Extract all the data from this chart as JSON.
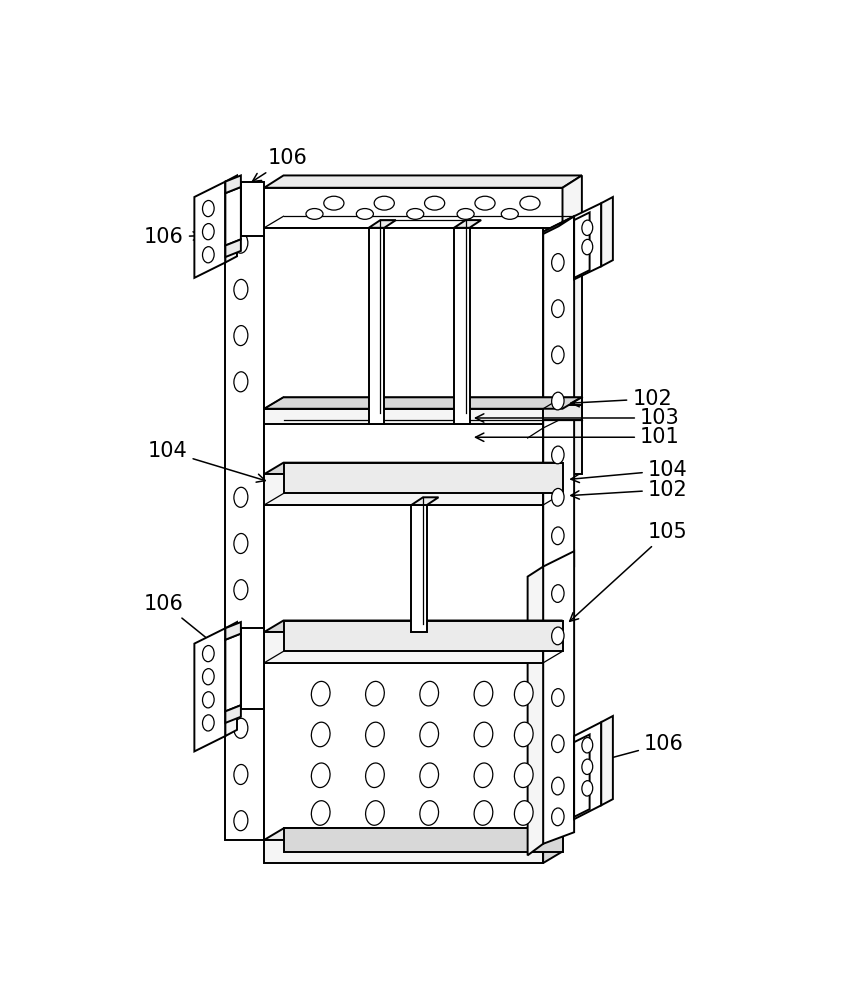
{
  "bg_color": "#ffffff",
  "face_white": "#ffffff",
  "face_light": "#f5f5f5",
  "face_mid": "#ebebeb",
  "face_dark": "#d8d8d8",
  "line_color": "#000000",
  "lw_main": 1.4,
  "lw_thin": 0.9,
  "label_fontsize": 15,
  "figsize": [
    8.42,
    10.0
  ],
  "dpi": 100
}
